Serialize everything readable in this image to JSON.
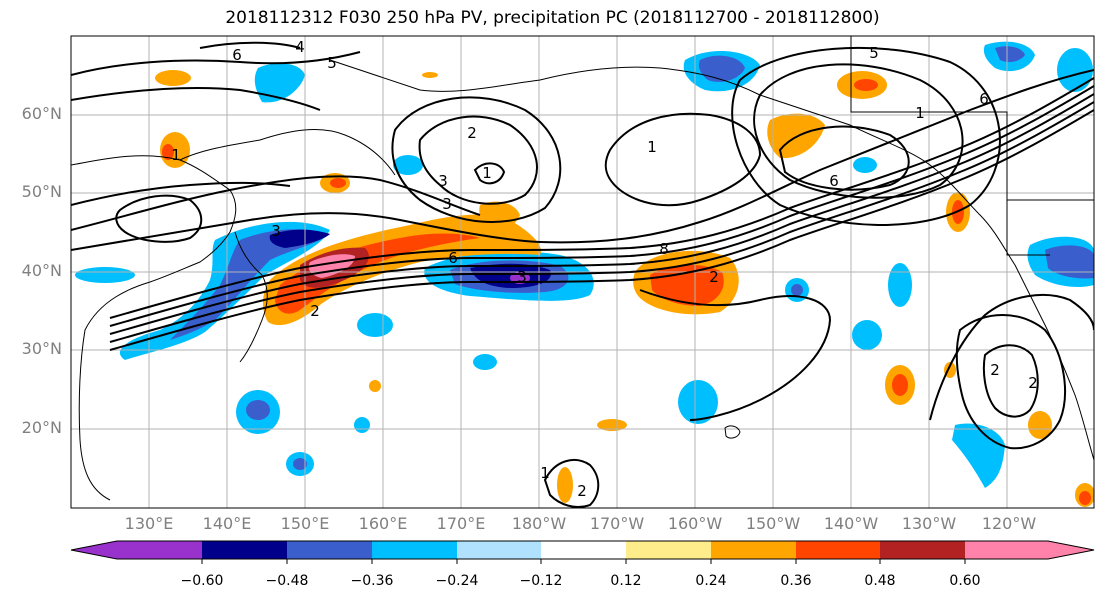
{
  "title": "2018112312 F030 250 hPa PV, precipitation PC (2018112700 - 2018112800)",
  "lat_labels": [
    "60°N",
    "50°N",
    "40°N",
    "30°N",
    "20°N"
  ],
  "lon_labels": [
    "130°E",
    "140°E",
    "150°E",
    "160°E",
    "170°E",
    "180°W",
    "170°W",
    "160°W",
    "150°W",
    "140°W",
    "130°W",
    "120°W"
  ],
  "colorbar": {
    "tick_labels": [
      "−0.60",
      "−0.48",
      "−0.36",
      "−0.24",
      "−0.12",
      "0.12",
      "0.24",
      "0.36",
      "0.48",
      "0.60"
    ],
    "colors": [
      "#9932cc",
      "#00008b",
      "#3a5fcd",
      "#00bfff",
      "#b0e2ff",
      "#ffffff",
      "#ffec8b",
      "#ffa500",
      "#ff4500",
      "#b22222",
      "#ff82ab"
    ]
  },
  "contour_labels": [
    "4",
    "6",
    "5",
    "2",
    "1",
    "3",
    "3",
    "3",
    "2",
    "3",
    "2",
    "6",
    "8",
    "1",
    "6",
    "5",
    "1",
    "6",
    "1",
    "2",
    "2",
    "1",
    "2"
  ]
}
